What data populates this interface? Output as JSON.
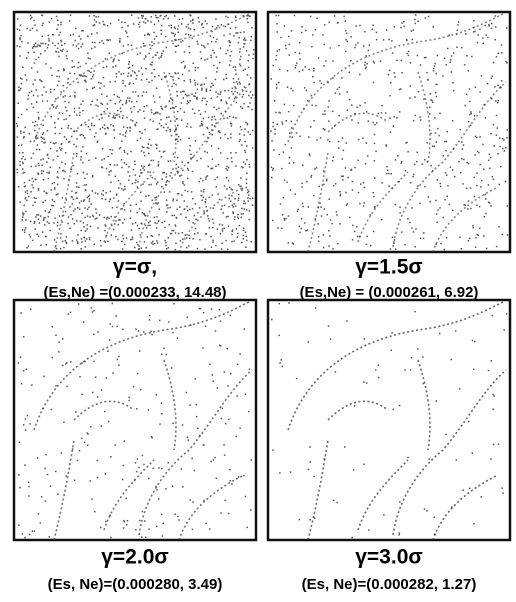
{
  "panels": [
    {
      "title": "γ=σ,",
      "subtitle": "(Es,Ne) =(0.000233, 14.48)"
    },
    {
      "title": "γ=1.5σ",
      "subtitle": "(Es,Ne) = (0.000261, 6.92)"
    },
    {
      "title": "γ=2.0σ",
      "subtitle": "(Es, Ne)=(0.000280, 3.49)"
    },
    {
      "title": "γ=3.0σ",
      "subtitle": "(Es, Ne)=(0.000282, 1.27)"
    }
  ]
}
